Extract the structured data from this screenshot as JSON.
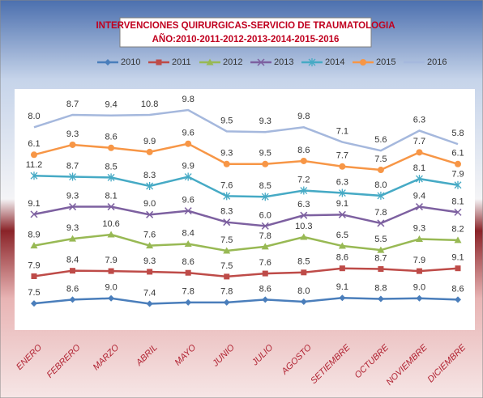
{
  "chart_data": {
    "type": "stacked_line",
    "title": "INTERVENCIONES QUIRURGICAS-SERVICIO DE TRAUMATOLOGIA",
    "subtitle": "AÑO:2010-2011-2012-2013-2014-2015-2016",
    "categories": [
      "ENERO",
      "FEBRERO",
      "MARZO",
      "ABRIL",
      "MAYO",
      "JUNIO",
      "JULIO",
      "AGOSTO",
      "SETIEMBRE",
      "OCTUBRE",
      "NOVIEMBRE",
      "DICIEMBRE"
    ],
    "stacked": true,
    "legend": "top",
    "series": [
      {
        "name": "2010",
        "color": "#4a7ebb",
        "marker": "diamond",
        "values": [
          7.5,
          8.6,
          9.0,
          7.4,
          7.8,
          7.8,
          8.6,
          8.0,
          9.1,
          8.8,
          9.0,
          8.6
        ],
        "value_labels": [
          "7.5",
          "8.6",
          "9.0",
          "7.4",
          "7.8",
          "7.8",
          "8.6",
          "8.0",
          "9.1",
          "8.8",
          "9.0",
          "8.6"
        ]
      },
      {
        "name": "2011",
        "color": "#be4b48",
        "marker": "square",
        "values": [
          7.9,
          8.4,
          7.9,
          9.3,
          8.6,
          7.5,
          7.6,
          8.5,
          8.6,
          8.7,
          7.9,
          9.1
        ],
        "value_labels": [
          "7.9",
          "8.4",
          "7.9",
          "9.3",
          "8.6",
          "7.5",
          "7.6",
          "8.5",
          "8.6",
          "8.7",
          "7.9",
          "9.1"
        ]
      },
      {
        "name": "2012",
        "color": "#98b954",
        "marker": "triangle",
        "values": [
          8.9,
          9.3,
          10.6,
          7.6,
          8.4,
          7.5,
          7.8,
          10.3,
          6.5,
          5.5,
          9.3,
          8.2
        ],
        "value_labels": [
          "8.9",
          "9.3",
          "10.6",
          "7.6",
          "8.4",
          "7.5",
          "7.8",
          "10.3",
          "6.5",
          "5.5",
          "9.3",
          "8.2"
        ]
      },
      {
        "name": "2013",
        "color": "#7d60a0",
        "marker": "x",
        "values": [
          9.1,
          9.3,
          8.1,
          9.0,
          9.6,
          8.3,
          6.0,
          6.3,
          9.1,
          7.8,
          9.4,
          8.1
        ],
        "value_labels": [
          "9.1",
          "9.3",
          "8.1",
          "9.0",
          "9.6",
          "8.3",
          "6.0",
          "6.3",
          "9.1",
          "7.8",
          "9.4",
          "8.1"
        ]
      },
      {
        "name": "2014",
        "color": "#46aac5",
        "marker": "star",
        "values": [
          11.2,
          8.7,
          8.5,
          8.3,
          9.9,
          7.6,
          8.5,
          7.2,
          6.3,
          8.0,
          8.1,
          7.9
        ],
        "value_labels": [
          "11.2",
          "8.7",
          "8.5",
          "8.3",
          "9.9",
          "7.6",
          "8.5",
          "7.2",
          "6.3",
          "8.0",
          "8.1",
          "7.9"
        ]
      },
      {
        "name": "2015",
        "color": "#f79646",
        "marker": "circle",
        "values": [
          6.1,
          9.3,
          8.6,
          9.9,
          9.6,
          9.3,
          9.5,
          8.6,
          7.7,
          7.5,
          7.7,
          6.1
        ],
        "value_labels": [
          "6.1",
          "9.3",
          "8.6",
          "9.9",
          "9.6",
          "9.3",
          "9.5",
          "8.6",
          "7.7",
          "7.5",
          "7.7",
          "6.1"
        ]
      },
      {
        "name": "2016",
        "color": "#a5b8dd",
        "marker": "none",
        "values": [
          8.0,
          8.7,
          9.4,
          10.8,
          9.8,
          9.5,
          9.3,
          9.8,
          7.1,
          5.6,
          6.3,
          5.8
        ],
        "value_labels": [
          "8.0",
          "8.7",
          "9.4",
          "10.8",
          "9.8",
          "9.5",
          "9.3",
          "9.8",
          "7.1",
          "5.6",
          "6.3",
          "5.8"
        ]
      }
    ]
  }
}
